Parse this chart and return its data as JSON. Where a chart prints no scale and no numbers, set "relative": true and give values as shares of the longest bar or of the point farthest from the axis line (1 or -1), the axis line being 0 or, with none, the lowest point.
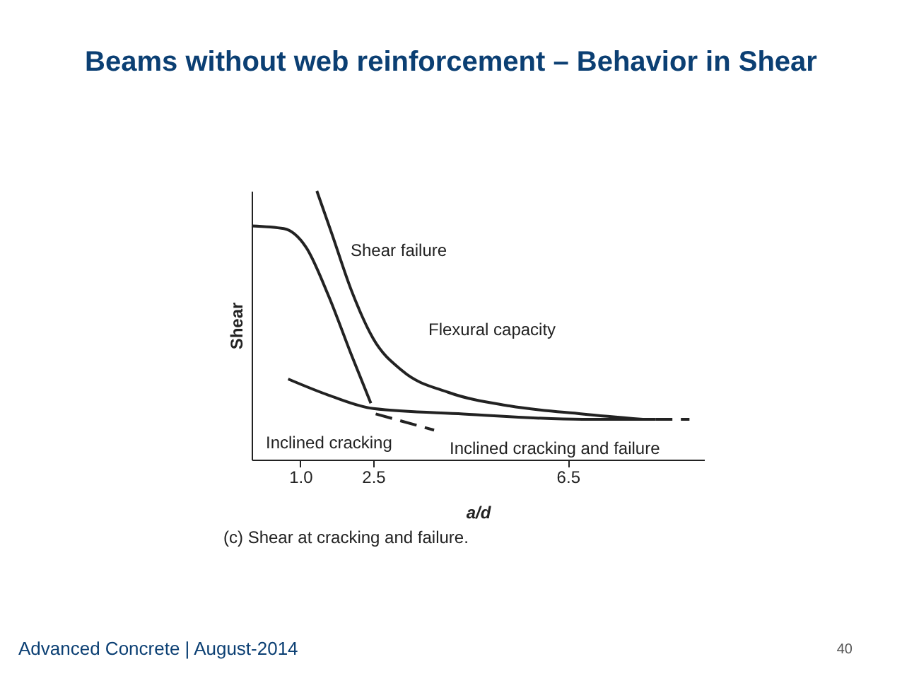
{
  "chart_data": {
    "type": "line",
    "title": "Beams without web reinforcement – Behavior in Shear",
    "xlabel": "a/d",
    "ylabel": "Shear",
    "relative": true,
    "xlim": [
      0,
      9.3
    ],
    "xticks": [
      {
        "value": 1.0,
        "label": "1.0"
      },
      {
        "value": 2.5,
        "label": "2.5"
      },
      {
        "value": 6.5,
        "label": "6.5"
      }
    ],
    "grid": false,
    "marker": "none",
    "series": [
      {
        "color": "#222222",
        "line_style": "solid",
        "x": [
          1.34,
          1.65,
          2.05,
          2.5,
          3.1,
          4.05,
          5.3,
          6.8,
          8.05
        ],
        "values": [
          1.0,
          0.84,
          0.63,
          0.45,
          0.33,
          0.25,
          0.2,
          0.17,
          0.15
        ]
      },
      {
        "color": "#222222",
        "line_style": "solid",
        "x": [
          0,
          0.66,
          1.12,
          1.58,
          2.05,
          2.45
        ],
        "values": [
          0.87,
          0.86,
          0.79,
          0.61,
          0.39,
          0.21
        ]
      },
      {
        "color": "#222222",
        "line_style": "solid",
        "x": [
          0.75,
          1.58,
          2.5,
          4.35,
          6.8,
          8.3
        ],
        "values": [
          0.3,
          0.24,
          0.19,
          0.17,
          0.15,
          0.15
        ]
      },
      {
        "color": "#222222",
        "line_style": "dashed",
        "x": [
          2.55,
          3.75
        ],
        "values": [
          0.17,
          0.11
        ]
      },
      {
        "color": "#222222",
        "line_style": "dashed",
        "x": [
          8.3,
          9.0
        ],
        "values": [
          0.15,
          0.15
        ]
      }
    ],
    "annotations": [
      "Shear failure",
      "Flexural capacity",
      "Inclined cracking",
      "Inclined cracking and failure",
      "(c) Shear at cracking and failure.",
      "Advanced Concrete | August-2014",
      "40"
    ]
  }
}
